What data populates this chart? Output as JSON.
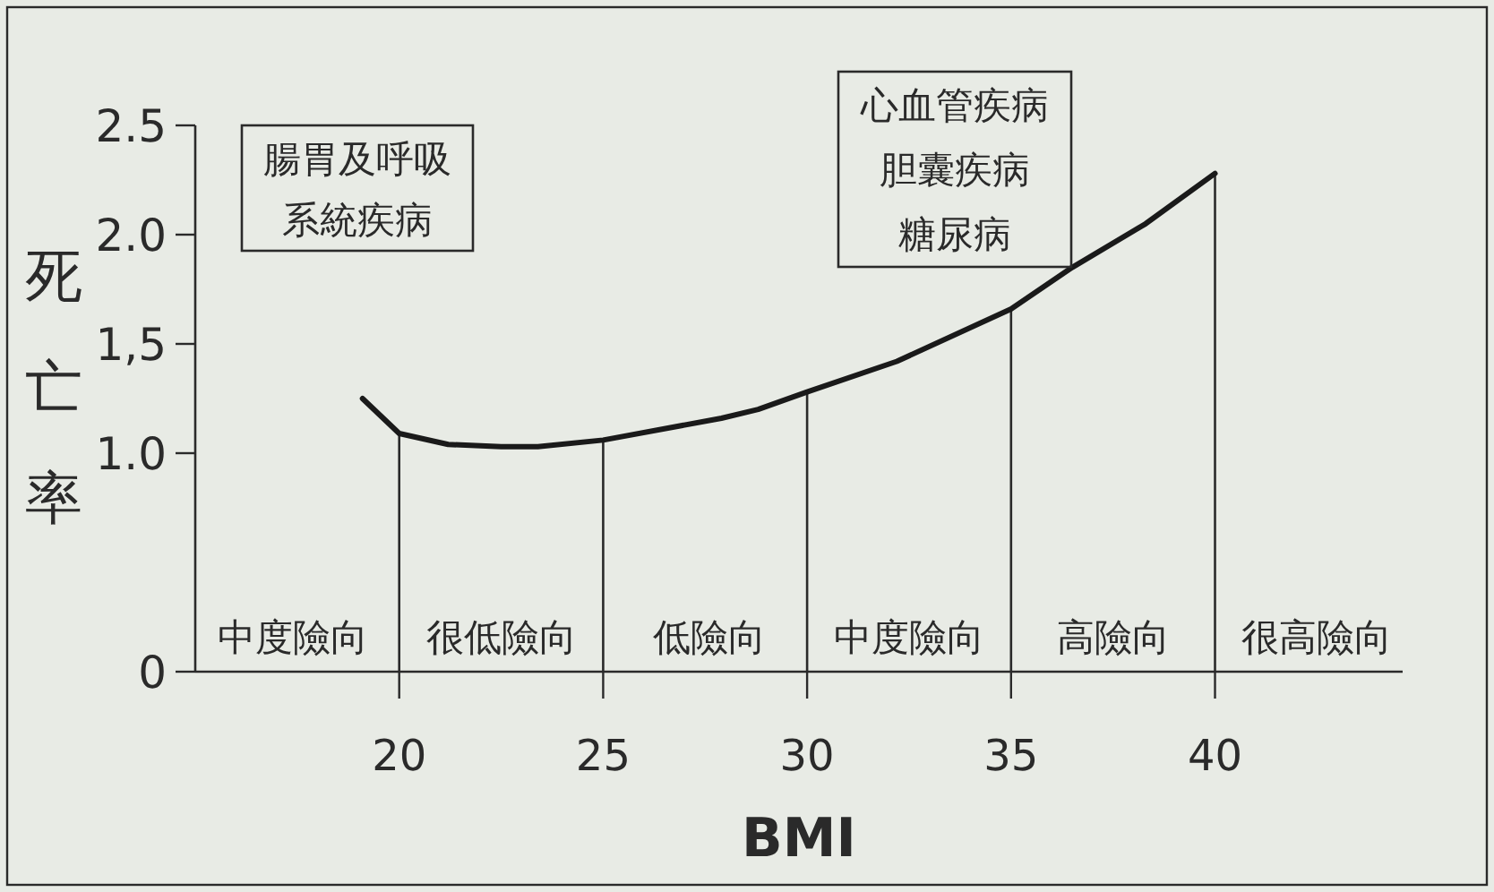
{
  "chart_data": {
    "type": "line",
    "xlabel": "BMI",
    "ylabel": "死亡率",
    "x": [
      19.1,
      20,
      21.2,
      22.5,
      23.4,
      25,
      27.9,
      28.8,
      30,
      32.2,
      35,
      36.5,
      38.3,
      40
    ],
    "series": [
      {
        "color": "#1a1a1a",
        "values": [
          1.25,
          1.09,
          1.04,
          1.03,
          1.03,
          1.06,
          1.16,
          1.2,
          1.28,
          1.42,
          1.66,
          1.85,
          2.05,
          2.28
        ]
      }
    ],
    "xlim": [
      15,
      44.6
    ],
    "xticks": [
      20,
      25,
      30,
      35,
      40
    ],
    "ylim": [
      0,
      2.5
    ],
    "yticks": [
      0,
      {
        "value": 1.0,
        "label": "1.0"
      },
      {
        "value": 1.5,
        "label": "1,5"
      },
      {
        "value": 2.0,
        "label": "2.0"
      },
      {
        "value": 2.5,
        "label": "2.5"
      }
    ],
    "ref_lines": [
      {
        "axis": "x",
        "value": 20
      },
      {
        "axis": "x",
        "value": 25
      },
      {
        "axis": "x",
        "value": 30
      },
      {
        "axis": "x",
        "value": 35
      },
      {
        "axis": "x",
        "value": 40
      }
    ],
    "annotations": [
      "腸胃及呼吸系統疾病",
      "心血管疾病",
      "胆囊疾病",
      "糖尿病",
      "中度險向",
      "很低險向",
      "低險向",
      "中度險向",
      "高險向",
      "很高險向"
    ],
    "grid": false,
    "marker": "none",
    "line_style": "solid"
  }
}
